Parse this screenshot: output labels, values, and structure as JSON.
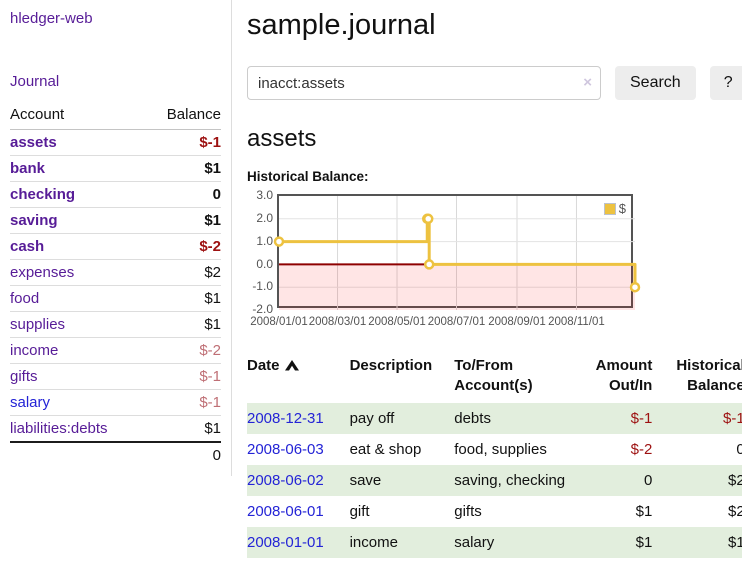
{
  "colors": {
    "purple": "#571c97",
    "blue": "#2424d6",
    "neg": "#9d1111",
    "negmuted": "#bf6f75",
    "green": "#e2eedd",
    "yellow": "#edc240",
    "zero": "#8e0000",
    "chartborder": "#545454",
    "axis": "#545454",
    "btn": "#ededed",
    "inputborder": "#cccccc",
    "divider": "#dddddd"
  },
  "sidebar": {
    "brand": "hledger-web",
    "journal_link": "Journal",
    "accounts": {
      "headers": {
        "account": "Account",
        "balance": "Balance"
      },
      "rows": [
        {
          "name": "assets",
          "level": 1,
          "bold": true,
          "link": "purple",
          "balance": "$-1",
          "balance_style": "neg"
        },
        {
          "name": "bank",
          "level": 2,
          "bold": true,
          "link": "purple",
          "balance": "$1",
          "balance_style": ""
        },
        {
          "name": "checking",
          "level": 3,
          "bold": true,
          "link": "purple",
          "balance": "0",
          "balance_style": ""
        },
        {
          "name": "saving",
          "level": 3,
          "bold": true,
          "link": "purple",
          "balance": "$1",
          "balance_style": ""
        },
        {
          "name": "cash",
          "level": 2,
          "bold": true,
          "link": "purple",
          "balance": "$-2",
          "balance_style": "neg"
        },
        {
          "name": "expenses",
          "level": 1,
          "bold": false,
          "link": "purple",
          "balance": "$2",
          "balance_style": ""
        },
        {
          "name": "food",
          "level": 2,
          "bold": false,
          "link": "purple",
          "balance": "$1",
          "balance_style": ""
        },
        {
          "name": "supplies",
          "level": 2,
          "bold": false,
          "link": "purple",
          "balance": "$1",
          "balance_style": ""
        },
        {
          "name": "income",
          "level": 1,
          "bold": false,
          "link": "purple",
          "balance": "$-2",
          "balance_style": "negmuted"
        },
        {
          "name": "gifts",
          "level": 2,
          "bold": false,
          "link": "purple",
          "balance": "$-1",
          "balance_style": "negmuted"
        },
        {
          "name": "salary",
          "level": 2,
          "bold": false,
          "link": "blue",
          "balance": "$-1",
          "balance_style": "negmuted"
        },
        {
          "name": "liabilities:debts",
          "level": 1,
          "bold": false,
          "link": "purple",
          "balance": "$1",
          "balance_style": ""
        }
      ],
      "total": "0"
    }
  },
  "header": {
    "title": "sample.journal"
  },
  "search": {
    "value": "inacct:assets",
    "clear_icon": "×",
    "button": "Search",
    "help": "?"
  },
  "main": {
    "account_heading": "assets",
    "chart_label": "Historical Balance:"
  },
  "chart_data": {
    "type": "line",
    "style": "step",
    "title": "Historical Balance",
    "series": [
      {
        "name": "$",
        "points": [
          [
            "2008-01-01",
            1
          ],
          [
            "2008-06-01",
            2
          ],
          [
            "2008-06-02",
            2
          ],
          [
            "2008-06-03",
            0
          ],
          [
            "2008-12-31",
            -1
          ]
        ]
      }
    ],
    "x_range": [
      "2008-01-01",
      "2008-12-31"
    ],
    "x_ticks": [
      "2008/01/01",
      "2008/03/01",
      "2008/05/01",
      "2008/07/01",
      "2008/09/01",
      "2008/11/01"
    ],
    "y_ticks": [
      "3.0",
      "2.0",
      "1.0",
      "0.0",
      "-1.0",
      "-2.0"
    ],
    "ylim": [
      -2,
      3
    ],
    "grid": true,
    "legend": {
      "label": "$",
      "position": "top-right"
    },
    "negative_region_shaded": true
  },
  "journal": {
    "columns": [
      {
        "label": "Date",
        "align": "left",
        "sortable": true,
        "sorted": "asc"
      },
      {
        "label": "Description",
        "align": "left"
      },
      {
        "label": "To/From Account(s)",
        "align": "left"
      },
      {
        "label": "Amount Out/In",
        "align": "right"
      },
      {
        "label": "Historical Balance",
        "align": "right"
      }
    ],
    "rows": [
      {
        "date": "2008-12-31",
        "description": "pay off",
        "accounts": "debts",
        "amount": "$-1",
        "amount_negative": true,
        "balance": "$-1",
        "balance_negative": true,
        "highlighted": true
      },
      {
        "date": "2008-06-03",
        "description": "eat & shop",
        "accounts": "food, supplies",
        "amount": "$-2",
        "amount_negative": true,
        "balance": "0",
        "balance_negative": false,
        "highlighted": false
      },
      {
        "date": "2008-06-02",
        "description": "save",
        "accounts": "saving, checking",
        "amount": "0",
        "amount_negative": false,
        "balance": "$2",
        "balance_negative": false,
        "highlighted": true
      },
      {
        "date": "2008-06-01",
        "description": "gift",
        "accounts": "gifts",
        "amount": "$1",
        "amount_negative": false,
        "balance": "$2",
        "balance_negative": false,
        "highlighted": false
      },
      {
        "date": "2008-01-01",
        "description": "income",
        "accounts": "salary",
        "amount": "$1",
        "amount_negative": false,
        "balance": "$1",
        "balance_negative": false,
        "highlighted": true
      }
    ]
  }
}
